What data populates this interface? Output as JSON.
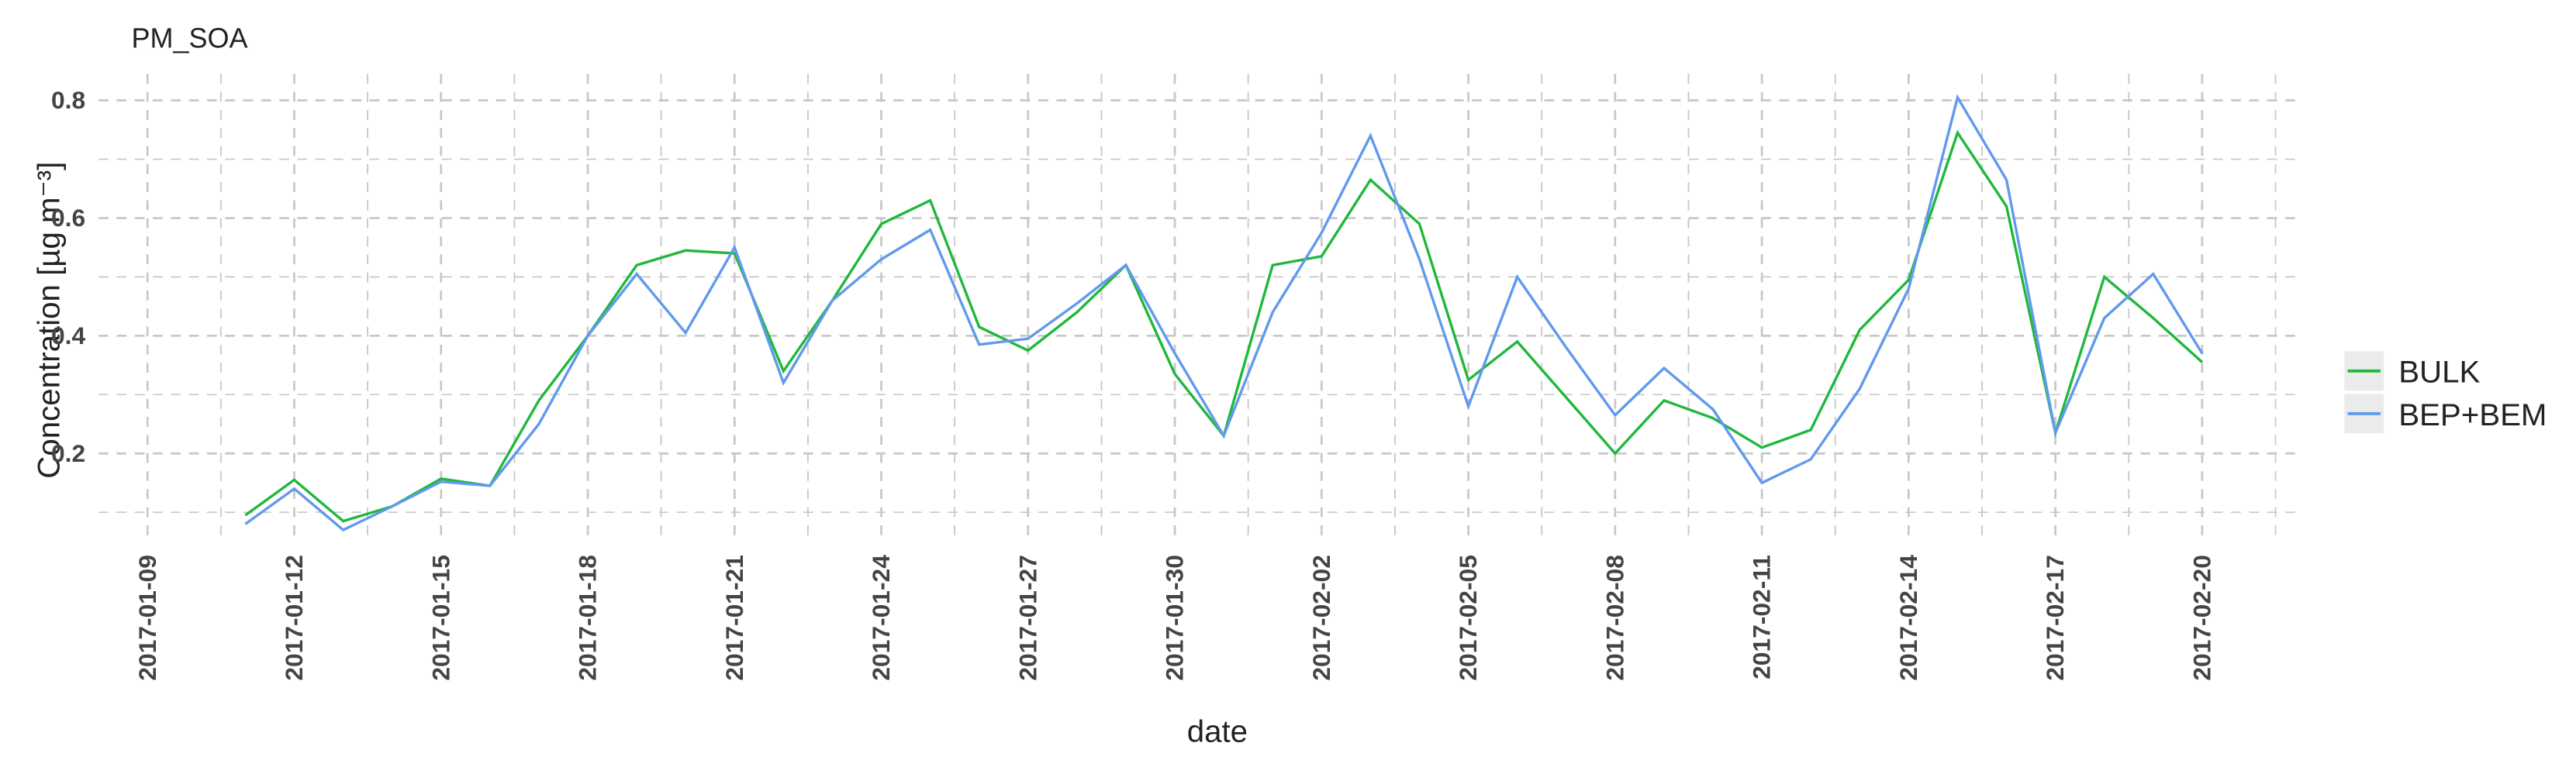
{
  "chart_data": {
    "type": "line",
    "title": "PM_SOA",
    "x_label": "date",
    "y_label": "Concentration [µg m⁻³]",
    "x": [
      "2017-01-11",
      "2017-01-12",
      "2017-01-13",
      "2017-01-14",
      "2017-01-15",
      "2017-01-16",
      "2017-01-17",
      "2017-01-18",
      "2017-01-19",
      "2017-01-20",
      "2017-01-21",
      "2017-01-22",
      "2017-01-23",
      "2017-01-24",
      "2017-01-25",
      "2017-01-26",
      "2017-01-27",
      "2017-01-28",
      "2017-01-29",
      "2017-01-30",
      "2017-01-31",
      "2017-02-01",
      "2017-02-02",
      "2017-02-03",
      "2017-02-04",
      "2017-02-05",
      "2017-02-06",
      "2017-02-07",
      "2017-02-08",
      "2017-02-09",
      "2017-02-10",
      "2017-02-11",
      "2017-02-12",
      "2017-02-13",
      "2017-02-14",
      "2017-02-15",
      "2017-02-16",
      "2017-02-17",
      "2017-02-18",
      "2017-02-19",
      "2017-02-20"
    ],
    "series": [
      {
        "name": "BULK",
        "color": "#1fb83c",
        "values": [
          0.095,
          0.155,
          0.085,
          0.11,
          0.157,
          0.145,
          0.29,
          0.4,
          0.52,
          0.545,
          0.54,
          0.34,
          0.46,
          0.59,
          0.63,
          0.415,
          0.375,
          0.44,
          0.52,
          0.335,
          0.23,
          0.52,
          0.535,
          0.665,
          0.59,
          0.325,
          0.39,
          0.295,
          0.2,
          0.29,
          0.26,
          0.21,
          0.24,
          0.41,
          0.495,
          0.745,
          0.62,
          0.235,
          0.5,
          0.43,
          0.355
        ]
      },
      {
        "name": "BEP+BEM",
        "color": "#6199ee",
        "values": [
          0.08,
          0.14,
          0.07,
          0.11,
          0.152,
          0.145,
          0.25,
          0.4,
          0.505,
          0.405,
          0.55,
          0.32,
          0.46,
          0.53,
          0.58,
          0.385,
          0.395,
          0.455,
          0.52,
          0.37,
          0.23,
          0.44,
          0.575,
          0.74,
          0.53,
          0.28,
          0.5,
          0.38,
          0.265,
          0.345,
          0.275,
          0.15,
          0.19,
          0.31,
          0.48,
          0.805,
          0.665,
          0.235,
          0.43,
          0.505,
          0.37
        ]
      }
    ],
    "xlim": [
      "2017-01-08",
      "2017-02-22"
    ],
    "xticks": [
      "2017-01-09",
      "2017-01-12",
      "2017-01-15",
      "2017-01-18",
      "2017-01-21",
      "2017-01-24",
      "2017-01-27",
      "2017-01-30",
      "2017-02-02",
      "2017-02-05",
      "2017-02-08",
      "2017-02-11",
      "2017-02-14",
      "2017-02-17",
      "2017-02-20"
    ],
    "ylim": [
      0.05,
      0.845
    ],
    "yticks": [
      0.2,
      0.4,
      0.6,
      0.8
    ],
    "grid": true,
    "legend": "right"
  }
}
